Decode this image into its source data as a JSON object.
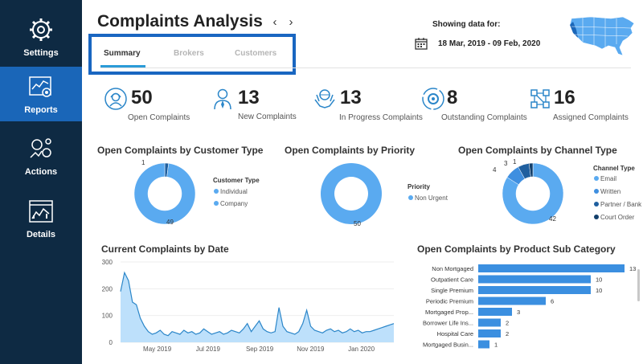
{
  "sidebar": {
    "items": [
      {
        "label": "Settings",
        "icon": "gear-icon"
      },
      {
        "label": "Reports",
        "icon": "report-chart-icon",
        "active": true
      },
      {
        "label": "Actions",
        "icon": "actions-icon"
      },
      {
        "label": "Details",
        "icon": "details-chart-icon"
      }
    ]
  },
  "header": {
    "title": "Complaints Analysis",
    "tabs": [
      "Summary",
      "Brokers",
      "Customers"
    ],
    "active_tab": "Summary",
    "showing_label": "Showing data for:",
    "date_range": "18 Mar, 2019 - 09 Feb, 2020"
  },
  "kpis": [
    {
      "value": "50",
      "label": "Open Complaints",
      "icon": "headset-agent-icon"
    },
    {
      "value": "13",
      "label": "New Complaints",
      "icon": "agent-icon"
    },
    {
      "value": "13",
      "label": "In Progress Complaints",
      "icon": "hands-globe-icon"
    },
    {
      "value": "8",
      "label": "Outstanding Complaints",
      "icon": "gear-cycle-icon"
    },
    {
      "value": "16",
      "label": "Assigned Complaints",
      "icon": "network-icon"
    }
  ],
  "colors": {
    "sidebar": "#0e2a43",
    "active": "#1a66b8",
    "accent": "#2b9bd8",
    "light_blue": "#5aaaf0",
    "mid_blue": "#3f8fe0",
    "dark_blue": "#1f5f9f",
    "navy": "#123f6b"
  },
  "chart_data": [
    {
      "type": "pie",
      "title": "Open Complaints by Customer Type",
      "legend_title": "Customer Type",
      "categories": [
        "Individual",
        "Company"
      ],
      "values": [
        1,
        49
      ],
      "labels": [
        "1",
        "49"
      ]
    },
    {
      "type": "pie",
      "title": "Open Complaints by Priority",
      "legend_title": "Priority",
      "categories": [
        "Non Urgent"
      ],
      "values": [
        50
      ],
      "labels": [
        "50"
      ]
    },
    {
      "type": "pie",
      "title": "Open Complaints by Channel Type",
      "legend_title": "Channel Type",
      "categories": [
        "Email",
        "Written",
        "Partner / Bank",
        "Court Order"
      ],
      "values": [
        42,
        4,
        3,
        1
      ],
      "labels": [
        "42",
        "4",
        "3",
        "1"
      ]
    },
    {
      "type": "area",
      "title": "Current Complaints by Date",
      "y_ticks": [
        "300",
        "200",
        "100",
        "0"
      ],
      "ylim": [
        0,
        300
      ],
      "x_ticks": [
        "May 2019",
        "Jul 2019",
        "Sep 2019",
        "Nov 2019",
        "Jan 2020"
      ],
      "x_range": [
        "2019-03-18",
        "2020-02-09"
      ],
      "series": [
        {
          "values": [
            190,
            260,
            230,
            150,
            140,
            90,
            60,
            40,
            30,
            35,
            45,
            30,
            25,
            40,
            35,
            30,
            45,
            35,
            40,
            30,
            35,
            50,
            40,
            30,
            35,
            40,
            30,
            35,
            45,
            40,
            35,
            50,
            70,
            40,
            60,
            80,
            50,
            40,
            35,
            40,
            130,
            60,
            40,
            35,
            30,
            40,
            70,
            120,
            60,
            45,
            40,
            35,
            45,
            50,
            40,
            45,
            35,
            40,
            50,
            40,
            45,
            35,
            40,
            40,
            45,
            50,
            55,
            60,
            65,
            70
          ]
        }
      ]
    },
    {
      "type": "bar",
      "title": "Open Complaints by Product Sub Category",
      "categories": [
        "Non Mortgaged",
        "Outpatient Care",
        "Single Premium",
        "Periodic Premium",
        "Mortgaged Prop...",
        "Borrower Life Ins...",
        "Hospital Care",
        "Mortgaged Busin..."
      ],
      "values": [
        13,
        10,
        10,
        6,
        3,
        2,
        2,
        1
      ],
      "labels": [
        "13",
        "10",
        "10",
        "6",
        "3",
        "2",
        "2",
        "1"
      ],
      "xlim": [
        0,
        13
      ]
    }
  ]
}
